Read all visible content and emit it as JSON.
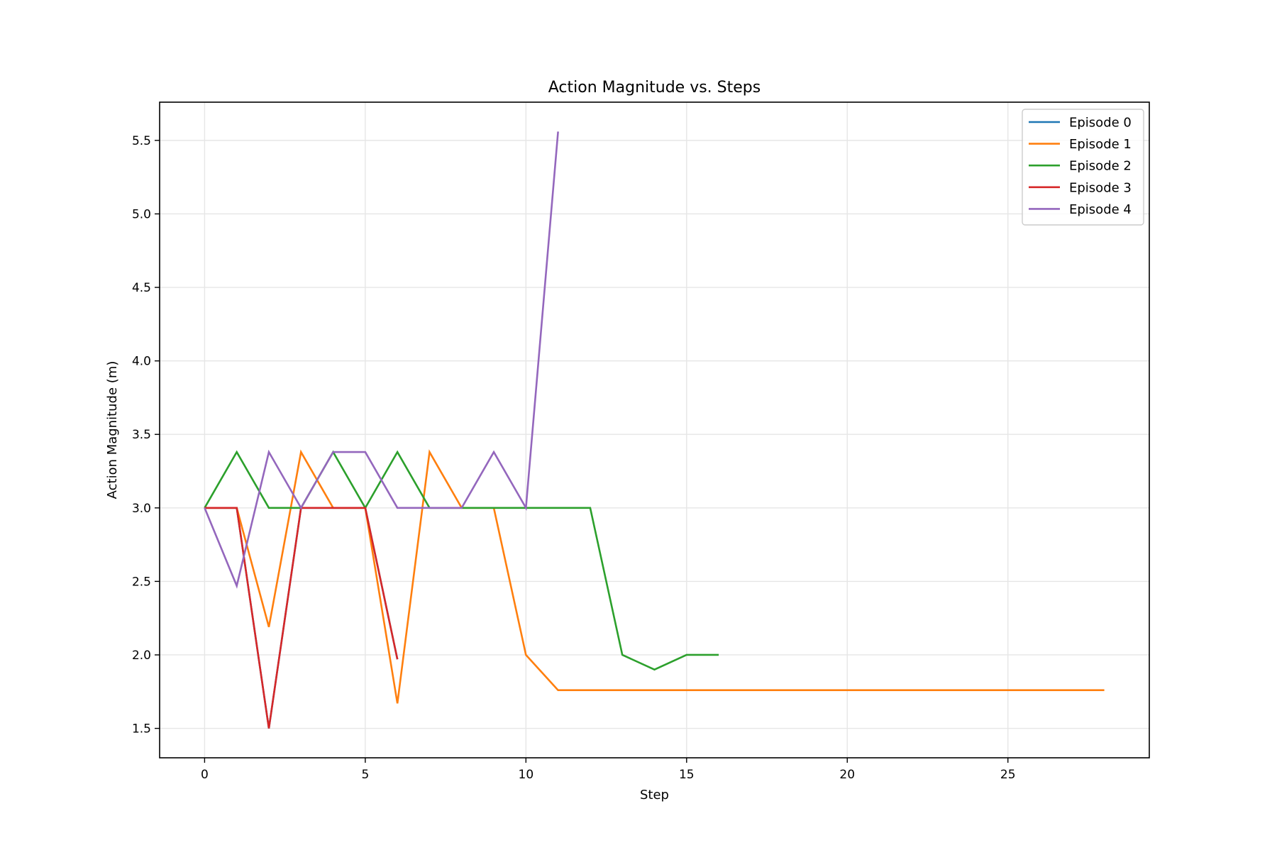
{
  "chart_data": {
    "type": "line",
    "title": "Action Magnitude vs. Steps",
    "xlabel": "Step",
    "ylabel": "Action Magnitude (m)",
    "xlim": [
      -1.4,
      29.4
    ],
    "ylim": [
      1.3,
      5.76
    ],
    "xticks": [
      0,
      5,
      10,
      15,
      20,
      25
    ],
    "yticks": [
      1.5,
      2.0,
      2.5,
      3.0,
      3.5,
      4.0,
      4.5,
      5.0,
      5.5
    ],
    "grid": true,
    "legend_position": "top-right",
    "series": [
      {
        "name": "Episode 0",
        "color": "#1f77b4",
        "x": [
          0,
          1,
          2,
          3,
          4,
          5,
          6
        ],
        "y": [
          3.0,
          3.0,
          1.5,
          3.0,
          3.0,
          3.0,
          1.97
        ]
      },
      {
        "name": "Episode 1",
        "color": "#ff7f0e",
        "x": [
          0,
          1,
          2,
          3,
          4,
          5,
          6,
          7,
          8,
          9,
          10,
          11,
          12,
          13,
          14,
          15,
          16,
          17,
          18,
          19,
          20,
          21,
          22,
          23,
          24,
          25,
          26,
          27,
          28
        ],
        "y": [
          3.0,
          3.0,
          2.19,
          3.38,
          3.0,
          3.0,
          1.67,
          3.38,
          3.0,
          3.0,
          2.0,
          1.76,
          1.76,
          1.76,
          1.76,
          1.76,
          1.76,
          1.76,
          1.76,
          1.76,
          1.76,
          1.76,
          1.76,
          1.76,
          1.76,
          1.76,
          1.76,
          1.76,
          1.76
        ]
      },
      {
        "name": "Episode 2",
        "color": "#2ca02c",
        "x": [
          0,
          1,
          2,
          3,
          4,
          5,
          6,
          7,
          8,
          9,
          10,
          11,
          12,
          13,
          14,
          15,
          16
        ],
        "y": [
          3.0,
          3.38,
          3.0,
          3.0,
          3.38,
          3.0,
          3.38,
          3.0,
          3.0,
          3.0,
          3.0,
          3.0,
          3.0,
          2.0,
          1.9,
          2.0,
          2.0
        ]
      },
      {
        "name": "Episode 3",
        "color": "#d62728",
        "x": [
          0,
          1,
          2,
          3,
          4,
          5,
          6
        ],
        "y": [
          3.0,
          3.0,
          1.5,
          3.0,
          3.0,
          3.0,
          1.97
        ]
      },
      {
        "name": "Episode 4",
        "color": "#9467bd",
        "x": [
          0,
          1,
          2,
          3,
          4,
          5,
          6,
          7,
          8,
          9,
          10,
          11
        ],
        "y": [
          3.0,
          2.47,
          3.38,
          3.0,
          3.38,
          3.38,
          3.0,
          3.0,
          3.0,
          3.38,
          3.0,
          5.56
        ]
      }
    ]
  }
}
